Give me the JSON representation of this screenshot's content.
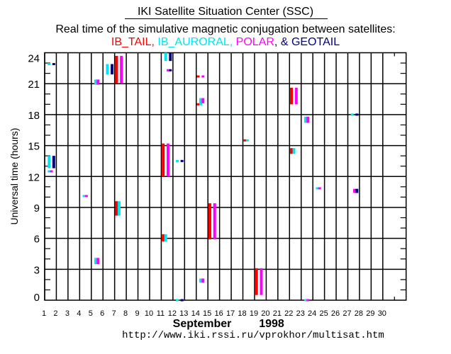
{
  "header": {
    "title": "IKI Satellite Situation Center (SSC)",
    "subtitle": "Real time of the simulative magnetic conjugation between satellites:",
    "legend_parts": [
      {
        "text": "IB_TAIL",
        "color": "#ff0000"
      },
      {
        "text": ", ",
        "color": "#ff0000"
      },
      {
        "text": "IB_AURORAL",
        "color": "#00e5ee"
      },
      {
        "text": ", ",
        "color": "#00e5ee"
      },
      {
        "text": "POLAR",
        "color": "#ff00ff"
      },
      {
        "text": ", & ",
        "color": "#000080"
      },
      {
        "text": "GEOTAIL",
        "color": "#000080"
      }
    ]
  },
  "footer": {
    "month": "September",
    "year": "1998",
    "url": "http://www.iki.rssi.ru/vprokhor/multisat.htm"
  },
  "chart_data": {
    "type": "scatter",
    "title": "Real time of the simulative magnetic conjugation between satellites",
    "xlabel": "September 1998",
    "ylabel": "Universal time (hours)",
    "xlim": [
      1,
      32
    ],
    "ylim": [
      0,
      24
    ],
    "x_ticks": [
      1,
      2,
      3,
      4,
      5,
      6,
      7,
      8,
      9,
      10,
      11,
      12,
      13,
      14,
      15,
      16,
      17,
      18,
      19,
      20,
      21,
      22,
      23,
      24,
      25,
      26,
      27,
      28,
      29,
      30
    ],
    "y_ticks": [
      0,
      3,
      6,
      9,
      12,
      15,
      18,
      21,
      24
    ],
    "grid": true,
    "series": [
      {
        "name": "IB_TAIL",
        "color": "#ff0000"
      },
      {
        "name": "IB_AURORAL",
        "color": "#00e5ee"
      },
      {
        "name": "POLAR",
        "color": "#ff00ff"
      },
      {
        "name": "GEOTAIL",
        "color": "#000080"
      }
    ],
    "intervals": [
      {
        "sat": "IB_AURORAL",
        "day": 1,
        "start": 22.8,
        "end": 23.0
      },
      {
        "sat": "GEOTAIL",
        "day": 1,
        "start": 22.8,
        "end": 23.0
      },
      {
        "sat": "IB_AURORAL",
        "day": 1,
        "start": 12.8,
        "end": 14.0
      },
      {
        "sat": "GEOTAIL",
        "day": 1,
        "start": 12.8,
        "end": 14.0
      },
      {
        "sat": "IB_AURORAL",
        "day": 1,
        "start": 12.4,
        "end": 12.6
      },
      {
        "sat": "POLAR",
        "day": 1,
        "start": 12.4,
        "end": 12.6
      },
      {
        "sat": "IB_AURORAL",
        "day": 4,
        "start": 10.1,
        "end": 10.2
      },
      {
        "sat": "POLAR",
        "day": 4,
        "start": 10.1,
        "end": 10.2
      },
      {
        "sat": "IB_AURORAL",
        "day": 5,
        "start": 20.9,
        "end": 21.4
      },
      {
        "sat": "POLAR",
        "day": 5,
        "start": 20.9,
        "end": 21.4
      },
      {
        "sat": "IB_AURORAL",
        "day": 5,
        "start": 3.5,
        "end": 4.1
      },
      {
        "sat": "POLAR",
        "day": 5,
        "start": 3.5,
        "end": 4.1
      },
      {
        "sat": "IB_AURORAL",
        "day": 6,
        "start": 21.9,
        "end": 22.9
      },
      {
        "sat": "GEOTAIL",
        "day": 6,
        "start": 21.9,
        "end": 22.9
      },
      {
        "sat": "IB_TAIL",
        "day": 7,
        "start": 21.0,
        "end": 23.7
      },
      {
        "sat": "POLAR",
        "day": 7,
        "start": 21.0,
        "end": 23.7
      },
      {
        "sat": "IB_TAIL",
        "day": 7,
        "start": 8.2,
        "end": 9.6
      },
      {
        "sat": "IB_AURORAL",
        "day": 7,
        "start": 8.2,
        "end": 9.6
      },
      {
        "sat": "IB_AURORAL",
        "day": 11,
        "start": 23.2,
        "end": 24.0
      },
      {
        "sat": "GEOTAIL",
        "day": 11,
        "start": 23.2,
        "end": 24.0
      },
      {
        "sat": "POLAR",
        "day": 11,
        "start": 22.3,
        "end": 22.4
      },
      {
        "sat": "GEOTAIL",
        "day": 11,
        "start": 22.3,
        "end": 22.4
      },
      {
        "sat": "IB_TAIL",
        "day": 11,
        "start": 12.0,
        "end": 15.2
      },
      {
        "sat": "POLAR",
        "day": 11,
        "start": 12.0,
        "end": 15.2
      },
      {
        "sat": "IB_TAIL",
        "day": 11,
        "start": 5.7,
        "end": 6.4
      },
      {
        "sat": "IB_AURORAL",
        "day": 11,
        "start": 5.7,
        "end": 6.4
      },
      {
        "sat": "IB_AURORAL",
        "day": 12,
        "start": 13.5,
        "end": 13.6
      },
      {
        "sat": "GEOTAIL",
        "day": 12,
        "start": 13.5,
        "end": 13.6
      },
      {
        "sat": "IB_AURORAL",
        "day": 12,
        "start": 0.0,
        "end": 0.1
      },
      {
        "sat": "GEOTAIL",
        "day": 12,
        "start": 0.0,
        "end": 0.1
      },
      {
        "sat": "IB_TAIL",
        "day": 14,
        "start": 21.7,
        "end": 21.8
      },
      {
        "sat": "POLAR",
        "day": 14,
        "start": 21.7,
        "end": 21.8
      },
      {
        "sat": "IB_TAIL",
        "day": 14,
        "start": 19.0,
        "end": 19.1
      },
      {
        "sat": "IB_AURORAL",
        "day": 14,
        "start": 18.9,
        "end": 19.6
      },
      {
        "sat": "POLAR",
        "day": 14,
        "start": 19.1,
        "end": 19.6
      },
      {
        "sat": "IB_AURORAL",
        "day": 14,
        "start": 1.7,
        "end": 2.1
      },
      {
        "sat": "POLAR",
        "day": 14,
        "start": 1.7,
        "end": 2.1
      },
      {
        "sat": "IB_TAIL",
        "day": 15,
        "start": 5.9,
        "end": 9.4
      },
      {
        "sat": "POLAR",
        "day": 15,
        "start": 5.9,
        "end": 9.4
      },
      {
        "sat": "IB_TAIL",
        "day": 18,
        "start": 15.5,
        "end": 15.6
      },
      {
        "sat": "IB_AURORAL",
        "day": 18,
        "start": 15.5,
        "end": 15.6
      },
      {
        "sat": "IB_TAIL",
        "day": 19,
        "start": 0.5,
        "end": 3.1
      },
      {
        "sat": "POLAR",
        "day": 19,
        "start": 0.5,
        "end": 3.1
      },
      {
        "sat": "IB_TAIL",
        "day": 22,
        "start": 19.0,
        "end": 20.6
      },
      {
        "sat": "POLAR",
        "day": 22,
        "start": 19.0,
        "end": 20.6
      },
      {
        "sat": "IB_TAIL",
        "day": 22,
        "start": 14.2,
        "end": 14.75
      },
      {
        "sat": "IB_AURORAL",
        "day": 22,
        "start": 14.2,
        "end": 14.75
      },
      {
        "sat": "IB_AURORAL",
        "day": 23,
        "start": 17.2,
        "end": 17.8
      },
      {
        "sat": "POLAR",
        "day": 23,
        "start": 17.2,
        "end": 17.8
      },
      {
        "sat": "IB_AURORAL",
        "day": 23,
        "start": 0.0,
        "end": 0.1
      },
      {
        "sat": "POLAR",
        "day": 23,
        "start": 0.0,
        "end": 0.1
      },
      {
        "sat": "IB_AURORAL",
        "day": 24,
        "start": 10.85,
        "end": 10.95
      },
      {
        "sat": "POLAR",
        "day": 24,
        "start": 10.85,
        "end": 10.95
      },
      {
        "sat": "IB_AURORAL",
        "day": 27,
        "start": 18.0,
        "end": 18.1
      },
      {
        "sat": "GEOTAIL",
        "day": 27,
        "start": 18.0,
        "end": 18.1
      },
      {
        "sat": "POLAR",
        "day": 27,
        "start": 10.4,
        "end": 10.8
      },
      {
        "sat": "GEOTAIL",
        "day": 27,
        "start": 10.4,
        "end": 10.8
      }
    ]
  }
}
